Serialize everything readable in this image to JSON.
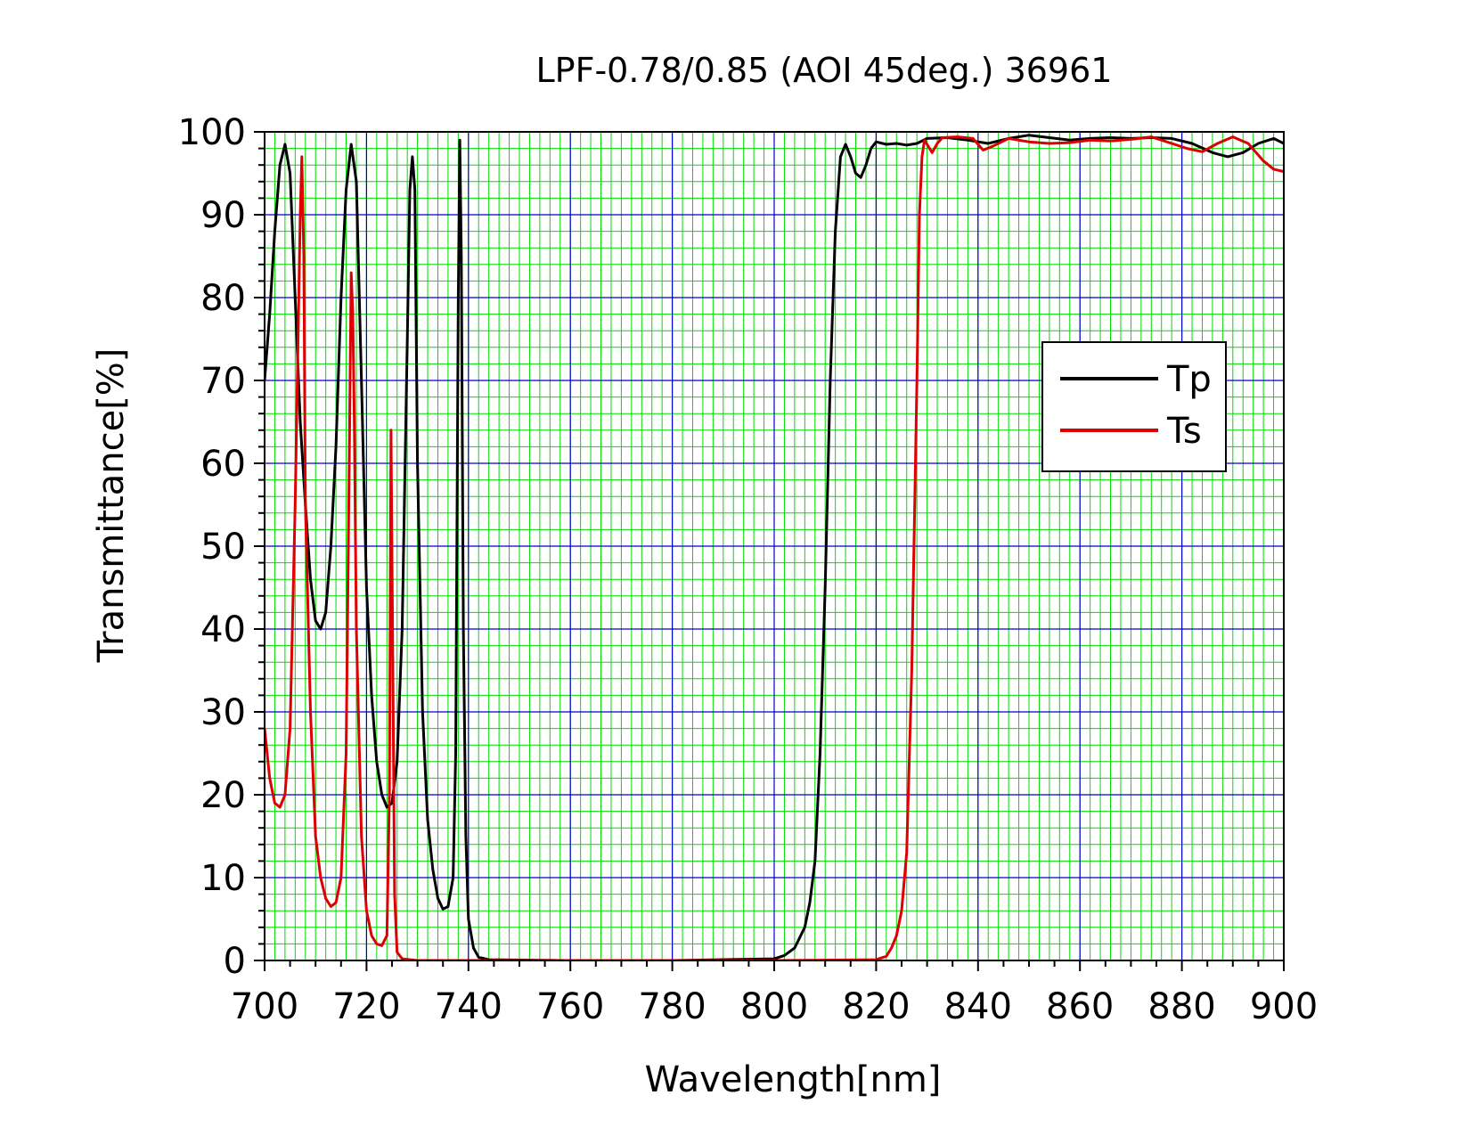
{
  "chart_data": {
    "type": "line",
    "title": "LPF-0.78/0.85 (AOI 45deg.)  36961",
    "xlabel": "Wavelength[nm]",
    "ylabel": "Transmittance[%]",
    "xlim": [
      700,
      900
    ],
    "ylim": [
      0,
      100
    ],
    "x_ticks": [
      700,
      720,
      740,
      760,
      780,
      800,
      820,
      840,
      860,
      880,
      900
    ],
    "y_ticks": [
      0,
      10,
      20,
      30,
      40,
      50,
      60,
      70,
      80,
      90,
      100
    ],
    "grid": true,
    "legend_position": "right",
    "colors": {
      "major_grid": "#0000cc",
      "minor_grid": "#00dd00",
      "Tp": "#000000",
      "Ts": "#dd0000"
    },
    "series": [
      {
        "name": "Tp",
        "color": "#000000",
        "points": [
          [
            700,
            70
          ],
          [
            701,
            78
          ],
          [
            702,
            88
          ],
          [
            703,
            96
          ],
          [
            704,
            98.5
          ],
          [
            705,
            95
          ],
          [
            706,
            80
          ],
          [
            707,
            65
          ],
          [
            708,
            55
          ],
          [
            709,
            46
          ],
          [
            710,
            41
          ],
          [
            711,
            40
          ],
          [
            712,
            42
          ],
          [
            713,
            50
          ],
          [
            714,
            62
          ],
          [
            715,
            80
          ],
          [
            716,
            93
          ],
          [
            717,
            98.5
          ],
          [
            718,
            94
          ],
          [
            719,
            70
          ],
          [
            720,
            45
          ],
          [
            721,
            32
          ],
          [
            722,
            24
          ],
          [
            723,
            20
          ],
          [
            724,
            18.5
          ],
          [
            725,
            19
          ],
          [
            726,
            24
          ],
          [
            727,
            40
          ],
          [
            728,
            75
          ],
          [
            728.5,
            93
          ],
          [
            729,
            97
          ],
          [
            729.5,
            93
          ],
          [
            730,
            60
          ],
          [
            731,
            30
          ],
          [
            732,
            17
          ],
          [
            733,
            11
          ],
          [
            734,
            7.5
          ],
          [
            735,
            6.2
          ],
          [
            736,
            6.5
          ],
          [
            737,
            10
          ],
          [
            737.5,
            25
          ],
          [
            738,
            80
          ],
          [
            738.3,
            99
          ],
          [
            738.6,
            85
          ],
          [
            739,
            40
          ],
          [
            739.5,
            15
          ],
          [
            740,
            5
          ],
          [
            741,
            1.5
          ],
          [
            742,
            0.4
          ],
          [
            744,
            0.1
          ],
          [
            760,
            0
          ],
          [
            780,
            0
          ],
          [
            800,
            0.2
          ],
          [
            802,
            0.6
          ],
          [
            804,
            1.5
          ],
          [
            806,
            4
          ],
          [
            807,
            7
          ],
          [
            808,
            12
          ],
          [
            809,
            25
          ],
          [
            810,
            45
          ],
          [
            811,
            70
          ],
          [
            812,
            88
          ],
          [
            813,
            97
          ],
          [
            814,
            98.5
          ],
          [
            815,
            97
          ],
          [
            816,
            95
          ],
          [
            817,
            94.5
          ],
          [
            818,
            96
          ],
          [
            819,
            98
          ],
          [
            820,
            98.8
          ],
          [
            822,
            98.5
          ],
          [
            824,
            98.6
          ],
          [
            826,
            98.4
          ],
          [
            828,
            98.6
          ],
          [
            830,
            99.2
          ],
          [
            834,
            99.3
          ],
          [
            838,
            99
          ],
          [
            842,
            98.6
          ],
          [
            846,
            99.2
          ],
          [
            850,
            99.6
          ],
          [
            854,
            99.3
          ],
          [
            858,
            99
          ],
          [
            862,
            99.2
          ],
          [
            866,
            99.3
          ],
          [
            870,
            99.2
          ],
          [
            874,
            99.3
          ],
          [
            878,
            99.2
          ],
          [
            882,
            98.6
          ],
          [
            886,
            97.5
          ],
          [
            889,
            97
          ],
          [
            892,
            97.5
          ],
          [
            895,
            98.6
          ],
          [
            898,
            99.2
          ],
          [
            900,
            98.6
          ]
        ]
      },
      {
        "name": "Ts",
        "color": "#dd0000",
        "points": [
          [
            700,
            28
          ],
          [
            701,
            22
          ],
          [
            702,
            19
          ],
          [
            703,
            18.5
          ],
          [
            704,
            20
          ],
          [
            705,
            28
          ],
          [
            706,
            55
          ],
          [
            707,
            90
          ],
          [
            707.3,
            97
          ],
          [
            707.7,
            85
          ],
          [
            708,
            55
          ],
          [
            709,
            30
          ],
          [
            710,
            15
          ],
          [
            711,
            10
          ],
          [
            712,
            7.5
          ],
          [
            713,
            6.5
          ],
          [
            714,
            7
          ],
          [
            715,
            10
          ],
          [
            716,
            25
          ],
          [
            716.6,
            60
          ],
          [
            717,
            83
          ],
          [
            717.3,
            78
          ],
          [
            717.6,
            65
          ],
          [
            718,
            40
          ],
          [
            719,
            15
          ],
          [
            720,
            6
          ],
          [
            721,
            3
          ],
          [
            722,
            2
          ],
          [
            723,
            1.8
          ],
          [
            724,
            3
          ],
          [
            724.5,
            20
          ],
          [
            724.8,
            64
          ],
          [
            725.1,
            40
          ],
          [
            725.5,
            8
          ],
          [
            726,
            1
          ],
          [
            727,
            0.2
          ],
          [
            730,
            0
          ],
          [
            760,
            0
          ],
          [
            800,
            0
          ],
          [
            820,
            0.1
          ],
          [
            822,
            0.5
          ],
          [
            823,
            1.5
          ],
          [
            824,
            3
          ],
          [
            825,
            6
          ],
          [
            826,
            13
          ],
          [
            827,
            35
          ],
          [
            828,
            70
          ],
          [
            828.5,
            90
          ],
          [
            829,
            97
          ],
          [
            829.5,
            99
          ],
          [
            830,
            98.5
          ],
          [
            831,
            97.5
          ],
          [
            832,
            98.6
          ],
          [
            833,
            99.3
          ],
          [
            836,
            99.4
          ],
          [
            839,
            99.2
          ],
          [
            841,
            97.8
          ],
          [
            843,
            98.3
          ],
          [
            846,
            99.2
          ],
          [
            850,
            98.8
          ],
          [
            854,
            98.6
          ],
          [
            858,
            98.7
          ],
          [
            862,
            99
          ],
          [
            866,
            98.9
          ],
          [
            870,
            99.1
          ],
          [
            874,
            99.4
          ],
          [
            878,
            98.6
          ],
          [
            881,
            98
          ],
          [
            884,
            97.6
          ],
          [
            887,
            98.6
          ],
          [
            890,
            99.4
          ],
          [
            893,
            98.6
          ],
          [
            896,
            96.5
          ],
          [
            898,
            95.5
          ],
          [
            900,
            95.2
          ]
        ]
      }
    ]
  }
}
